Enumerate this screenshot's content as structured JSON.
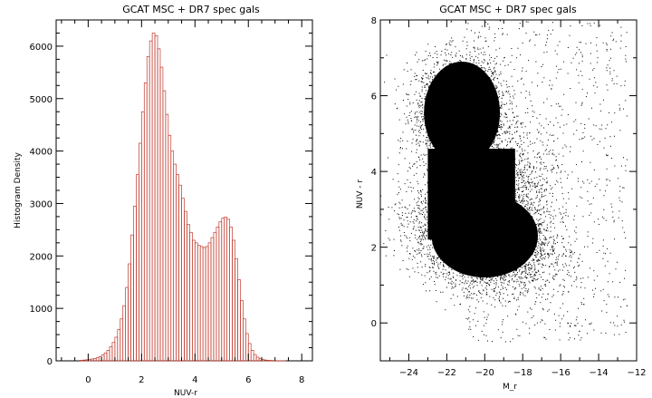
{
  "chart_data": [
    {
      "type": "bar",
      "title": "GCAT MSC + DR7 spec gals",
      "xlabel": "NUV-r",
      "ylabel": "Histogram Density",
      "xlim": [
        -1.2,
        8.4
      ],
      "ylim": [
        0,
        6500
      ],
      "xticks": [
        0,
        2,
        4,
        6,
        8
      ],
      "yticks": [
        0,
        1000,
        2000,
        3000,
        4000,
        5000,
        6000
      ],
      "bin_width": 0.1,
      "bar_color": "#c0392b",
      "x": [
        -0.3,
        -0.2,
        -0.1,
        0.0,
        0.1,
        0.2,
        0.3,
        0.4,
        0.5,
        0.6,
        0.7,
        0.8,
        0.9,
        1.0,
        1.1,
        1.2,
        1.3,
        1.4,
        1.5,
        1.6,
        1.7,
        1.8,
        1.9,
        2.0,
        2.1,
        2.2,
        2.3,
        2.4,
        2.5,
        2.6,
        2.7,
        2.8,
        2.9,
        3.0,
        3.1,
        3.2,
        3.3,
        3.4,
        3.5,
        3.6,
        3.7,
        3.8,
        3.9,
        4.0,
        4.1,
        4.2,
        4.3,
        4.4,
        4.5,
        4.6,
        4.7,
        4.8,
        4.9,
        5.0,
        5.1,
        5.2,
        5.3,
        5.4,
        5.5,
        5.6,
        5.7,
        5.8,
        5.9,
        6.0,
        6.1,
        6.2,
        6.3,
        6.4,
        6.5,
        6.6,
        6.7,
        6.8,
        6.9,
        7.0,
        7.1,
        7.2,
        7.3
      ],
      "values": [
        10,
        15,
        20,
        25,
        35,
        45,
        60,
        80,
        110,
        150,
        200,
        270,
        350,
        450,
        600,
        800,
        1050,
        1400,
        1850,
        2400,
        2950,
        3550,
        4150,
        4750,
        5300,
        5800,
        6100,
        6250,
        6200,
        5950,
        5600,
        5150,
        4700,
        4300,
        4000,
        3750,
        3550,
        3350,
        3100,
        2850,
        2600,
        2450,
        2300,
        2250,
        2200,
        2180,
        2160,
        2180,
        2250,
        2350,
        2450,
        2550,
        2650,
        2720,
        2740,
        2700,
        2550,
        2300,
        1950,
        1550,
        1150,
        800,
        520,
        330,
        200,
        120,
        70,
        40,
        25,
        15,
        10,
        8,
        5,
        3,
        2,
        1,
        1
      ]
    },
    {
      "type": "scatter",
      "title": "GCAT MSC + DR7 spec gals",
      "xlabel": "M_r",
      "ylabel": "NUV - r",
      "xlim": [
        -25.5,
        -12
      ],
      "ylim": [
        -1,
        8
      ],
      "xticks": [
        -24,
        -22,
        -20,
        -18,
        -16,
        -14,
        -12
      ],
      "yticks": [
        0,
        2,
        4,
        6,
        8
      ],
      "point_color": "#000000",
      "dense_region": {
        "red_sequence": {
          "mr_range": [
            -23.2,
            -19.2
          ],
          "nuv_r_range": [
            4.2,
            6.9
          ]
        },
        "blue_cloud": {
          "mr_range": [
            -22.8,
            -17.2
          ],
          "nuv_r_range": [
            1.2,
            3.4
          ]
        },
        "outliers_to": {
          "mr": -12.5,
          "nuv_r": [
            -0.5,
            8.0
          ]
        }
      }
    }
  ]
}
